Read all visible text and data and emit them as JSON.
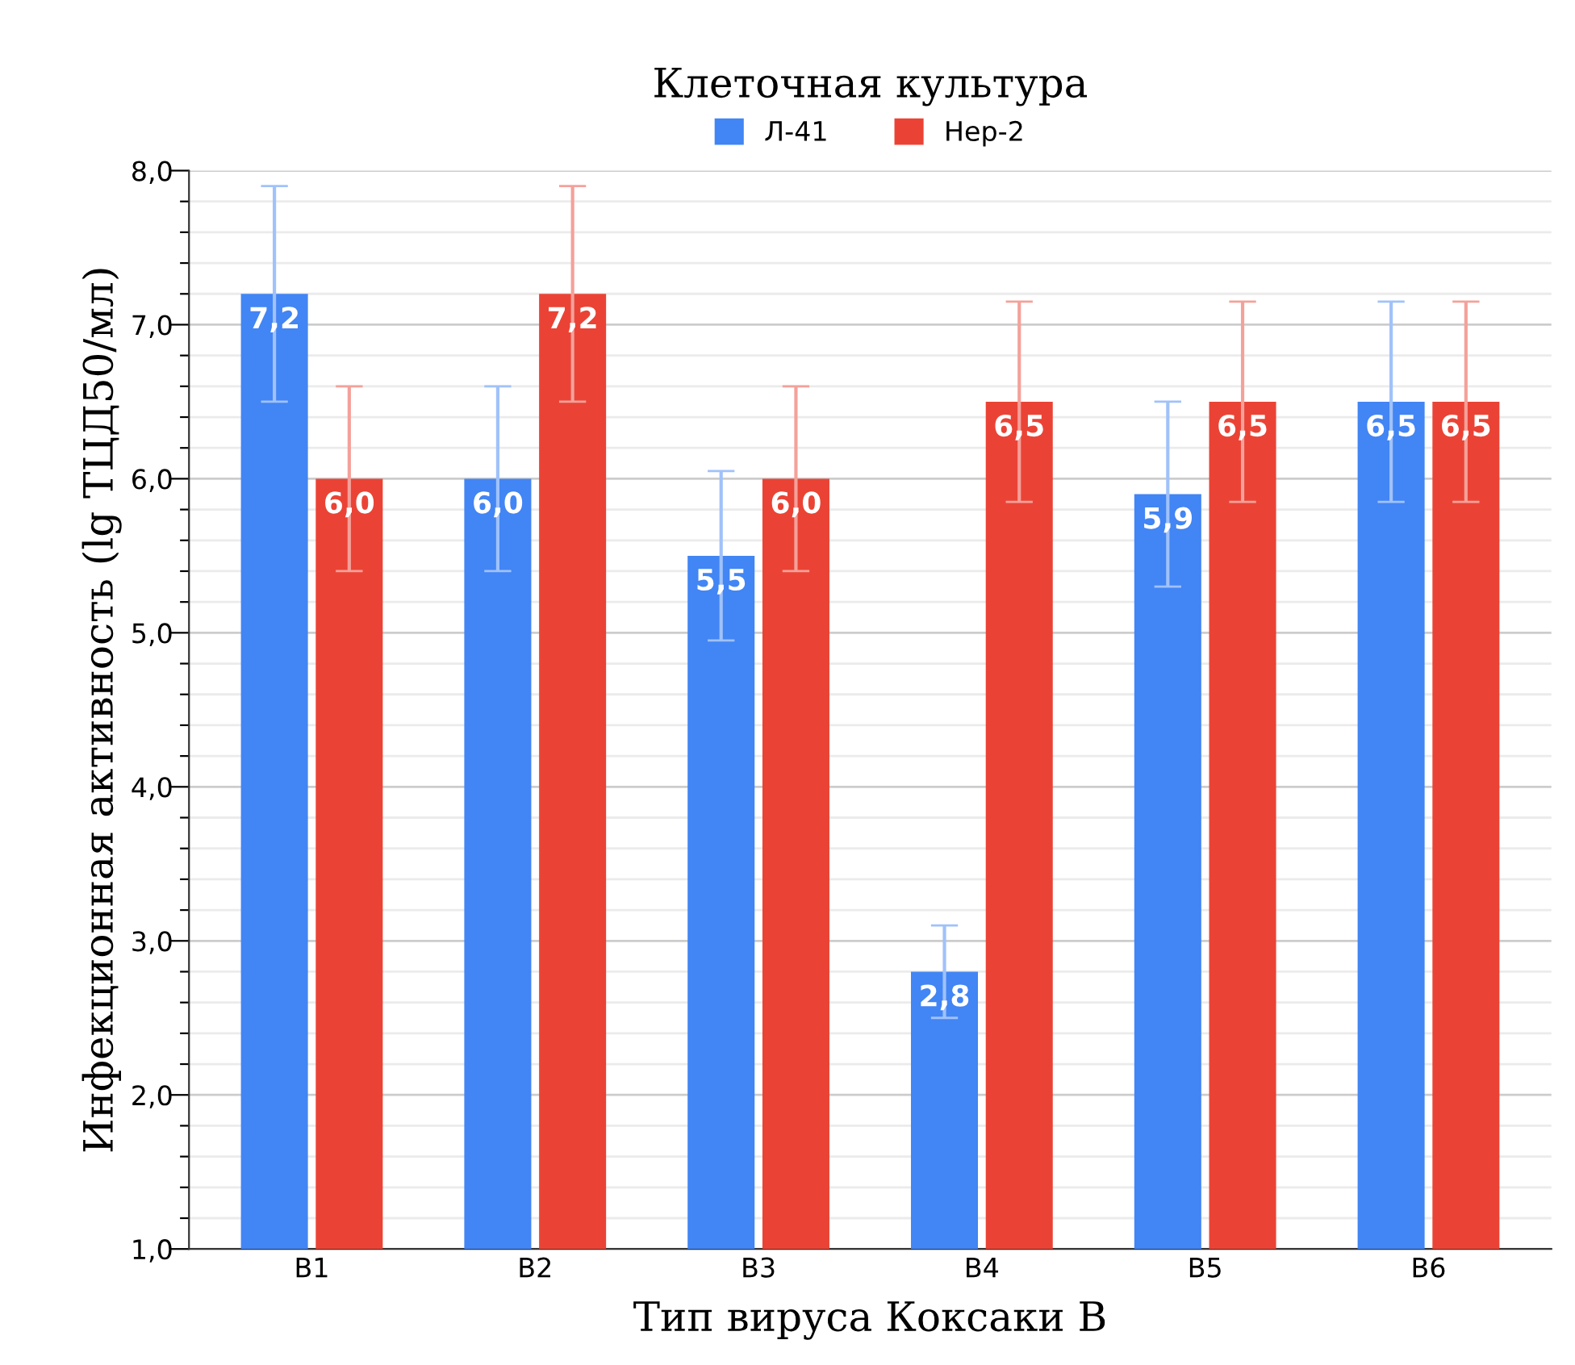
{
  "chart_data": {
    "type": "bar",
    "legend_title": "Клеточная культура",
    "xlabel": "Тип вируса Коксаки В",
    "ylabel": "Инфекционная активность (lg ТЦД50/мл)",
    "categories": [
      "В1",
      "В2",
      "В3",
      "В4",
      "В5",
      "В6"
    ],
    "series": [
      {
        "name": "Л-41",
        "color": "#4285f4",
        "values": [
          7.2,
          6.0,
          5.5,
          2.8,
          5.9,
          6.5
        ],
        "errors": [
          0.7,
          0.6,
          0.55,
          0.3,
          0.6,
          0.65
        ],
        "value_labels": [
          "7,2",
          "6,0",
          "5,5",
          "2,8",
          "5,9",
          "6,5"
        ]
      },
      {
        "name": "Нер-2",
        "color": "#ea4335",
        "values": [
          6.0,
          7.2,
          6.0,
          6.5,
          6.5,
          6.5
        ],
        "errors": [
          0.6,
          0.7,
          0.6,
          0.65,
          0.65,
          0.65
        ],
        "value_labels": [
          "6,0",
          "7,2",
          "6,0",
          "6,5",
          "6,5",
          "6,5"
        ]
      }
    ],
    "ylim": [
      1.0,
      8.0
    ],
    "yticks": [
      {
        "value": 1.0,
        "label": "1,0"
      },
      {
        "value": 1.2,
        "label": null
      },
      {
        "value": 1.4,
        "label": null
      },
      {
        "value": 1.6,
        "label": null
      },
      {
        "value": 1.8,
        "label": null
      },
      {
        "value": 2.0,
        "label": "2,0"
      },
      {
        "value": 2.2,
        "label": null
      },
      {
        "value": 2.4,
        "label": null
      },
      {
        "value": 2.6,
        "label": null
      },
      {
        "value": 2.8,
        "label": null
      },
      {
        "value": 3.0,
        "label": "3,0"
      },
      {
        "value": 3.2,
        "label": null
      },
      {
        "value": 3.4,
        "label": null
      },
      {
        "value": 3.6,
        "label": null
      },
      {
        "value": 3.8,
        "label": null
      },
      {
        "value": 4.0,
        "label": "4,0"
      },
      {
        "value": 4.2,
        "label": null
      },
      {
        "value": 4.4,
        "label": null
      },
      {
        "value": 4.6,
        "label": null
      },
      {
        "value": 4.8,
        "label": null
      },
      {
        "value": 5.0,
        "label": "5,0"
      },
      {
        "value": 5.2,
        "label": null
      },
      {
        "value": 5.4,
        "label": null
      },
      {
        "value": 5.6,
        "label": null
      },
      {
        "value": 5.8,
        "label": null
      },
      {
        "value": 6.0,
        "label": "6,0"
      },
      {
        "value": 6.2,
        "label": null
      },
      {
        "value": 6.4,
        "label": null
      },
      {
        "value": 6.6,
        "label": null
      },
      {
        "value": 6.8,
        "label": null
      },
      {
        "value": 7.0,
        "label": "7,0"
      },
      {
        "value": 7.2,
        "label": null
      },
      {
        "value": 7.4,
        "label": null
      },
      {
        "value": 7.6,
        "label": null
      },
      {
        "value": 7.8,
        "label": null
      },
      {
        "value": 8.0,
        "label": "8,0"
      }
    ],
    "grid": "y",
    "legend": "top"
  }
}
